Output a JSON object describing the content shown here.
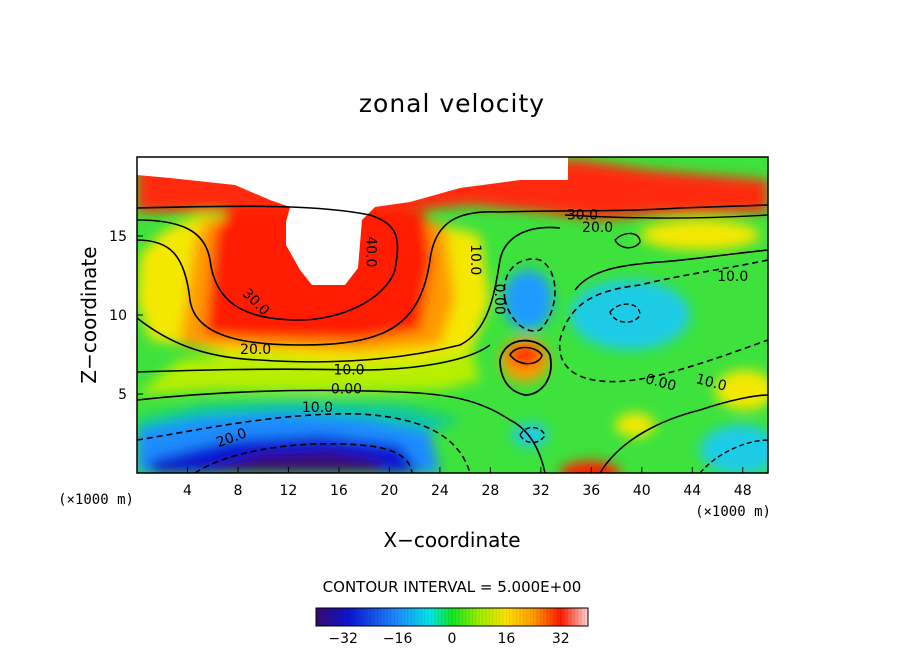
{
  "chart_data": {
    "type": "heatmap",
    "title": "zonal velocity",
    "xlabel": "X−coordinate",
    "ylabel": "Z−coordinate",
    "x_unit_label": "(×1000 m)",
    "y_unit_label": "(×1000 m)",
    "xlim": [
      0,
      50
    ],
    "ylim": [
      0,
      20
    ],
    "x_ticks": [
      "4",
      "8",
      "12",
      "16",
      "20",
      "24",
      "28",
      "32",
      "36",
      "40",
      "44",
      "48"
    ],
    "y_ticks": [
      "5",
      "10",
      "15"
    ],
    "contour_labels": [
      {
        "text": "40.0",
        "x": 18.5,
        "y": 14,
        "rotate": 90
      },
      {
        "text": "30.0",
        "x": 9.4,
        "y": 10.8,
        "rotate": 45
      },
      {
        "text": "30.0",
        "x": 35.3,
        "y": 16.3,
        "rotate": 0
      },
      {
        "text": "20.0",
        "x": 36.5,
        "y": 15.5,
        "rotate": 0
      },
      {
        "text": "20.0",
        "x": 9.4,
        "y": 7.8,
        "rotate": 0
      },
      {
        "text": "10.0",
        "x": 26.8,
        "y": 13.5,
        "rotate": 90
      },
      {
        "text": "10.0",
        "x": 16.8,
        "y": 6.5,
        "rotate": 0
      },
      {
        "text": "0.00",
        "x": 16.6,
        "y": 5.3,
        "rotate": 0
      },
      {
        "text": "0.00",
        "x": 28.7,
        "y": 11,
        "rotate": 90
      },
      {
        "text": "10.0",
        "x": 14.3,
        "y": 4.1,
        "rotate": 0
      },
      {
        "text": "20.0",
        "x": 7.5,
        "y": 2.2,
        "rotate": -20
      },
      {
        "text": "10.0",
        "x": 47.2,
        "y": 12.4,
        "rotate": 0
      },
      {
        "text": "0.00",
        "x": 41.5,
        "y": 5.7,
        "rotate": 15
      },
      {
        "text": "10.0",
        "x": 45.5,
        "y": 5.7,
        "rotate": 15
      }
    ],
    "grid": false,
    "colorbar": {
      "label": "CONTOUR INTERVAL = 5.000E+00",
      "range": [
        -40,
        40
      ],
      "ticks": [
        "−32",
        "−16",
        "0",
        "16",
        "32"
      ],
      "tick_values": [
        -32,
        -16,
        0,
        16,
        32
      ],
      "colors": [
        "#3a0a6e",
        "#0a14d2",
        "#1e8cff",
        "#00e6e6",
        "#11e620",
        "#9bee00",
        "#ffe000",
        "#ff9a00",
        "#ff1a00",
        "#ffd2d2"
      ]
    }
  }
}
